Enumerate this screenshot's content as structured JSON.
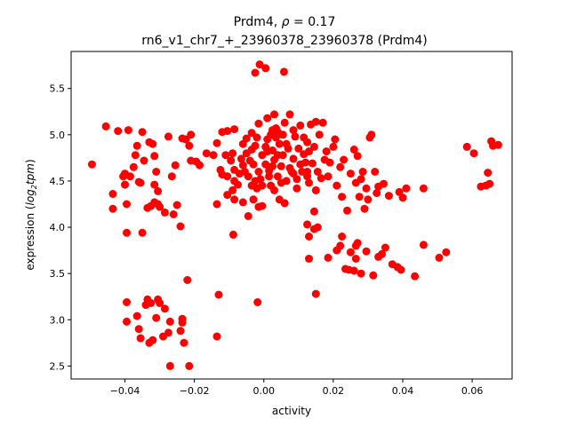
{
  "chart_data": {
    "type": "scatter",
    "title_line1_prefix": "Prdm4, ",
    "title_line1_rho": "ρ",
    "title_line1_suffix": " = 0.17",
    "title_line2": "rn6_v1_chr7_+_23960378_23960378 (Prdm4)",
    "xlabel": "activity",
    "ylabel_prefix": "expression (",
    "ylabel_log": "log",
    "ylabel_sub": "2",
    "ylabel_tpm": "tpm",
    "ylabel_suffix": ")",
    "xlim": [
      -0.0555,
      0.0715
    ],
    "ylim": [
      2.36,
      5.9
    ],
    "xticks": [
      -0.04,
      -0.02,
      0.0,
      0.02,
      0.04,
      0.06
    ],
    "xtick_labels": [
      "−0.04",
      "−0.02",
      "0.00",
      "0.02",
      "0.04",
      "0.06"
    ],
    "yticks": [
      2.5,
      3.0,
      3.5,
      4.0,
      4.5,
      5.0,
      5.5
    ],
    "ytick_labels": [
      "2.5",
      "3.0",
      "3.5",
      "4.0",
      "4.5",
      "5.0",
      "5.5"
    ],
    "grid": false,
    "marker_color": "#ff0000",
    "points": [
      [
        -0.0012,
        5.76
      ],
      [
        0.0005,
        5.72
      ],
      [
        -0.0025,
        5.67
      ],
      [
        0.0058,
        5.68
      ],
      [
        -0.0495,
        4.68
      ],
      [
        -0.0455,
        5.09
      ],
      [
        -0.042,
        5.04
      ],
      [
        -0.039,
        5.05
      ],
      [
        -0.035,
        5.03
      ],
      [
        -0.0435,
        4.36
      ],
      [
        -0.0435,
        4.2
      ],
      [
        -0.04,
        4.58
      ],
      [
        -0.0405,
        4.55
      ],
      [
        -0.04,
        4.46
      ],
      [
        -0.0395,
        4.25
      ],
      [
        -0.0385,
        4.55
      ],
      [
        -0.0375,
        4.65
      ],
      [
        -0.037,
        4.78
      ],
      [
        -0.0365,
        4.88
      ],
      [
        -0.036,
        4.49
      ],
      [
        -0.0355,
        4.48
      ],
      [
        -0.0345,
        4.72
      ],
      [
        -0.0335,
        4.21
      ],
      [
        -0.033,
        4.92
      ],
      [
        -0.032,
        4.9
      ],
      [
        -0.0315,
        4.77
      ],
      [
        -0.031,
        4.6
      ],
      [
        -0.0315,
        4.46
      ],
      [
        -0.0305,
        4.39
      ],
      [
        -0.0315,
        4.27
      ],
      [
        -0.03,
        4.22
      ],
      [
        -0.0325,
        4.23
      ],
      [
        -0.0305,
        4.25
      ],
      [
        -0.0285,
        4.16
      ],
      [
        -0.0275,
        4.98
      ],
      [
        -0.0265,
        4.55
      ],
      [
        -0.0255,
        4.67
      ],
      [
        -0.026,
        4.14
      ],
      [
        -0.025,
        4.24
      ],
      [
        -0.0235,
        4.96
      ],
      [
        -0.0225,
        4.95
      ],
      [
        -0.0215,
        4.88
      ],
      [
        -0.024,
        4.01
      ],
      [
        -0.021,
        5.0
      ],
      [
        -0.021,
        4.72
      ],
      [
        -0.0195,
        4.71
      ],
      [
        -0.0185,
        4.67
      ],
      [
        -0.0165,
        4.8
      ],
      [
        -0.0145,
        4.78
      ],
      [
        -0.0135,
        4.91
      ],
      [
        -0.0125,
        4.62
      ],
      [
        -0.012,
        5.03
      ],
      [
        -0.0105,
        4.55
      ],
      [
        -0.0095,
        4.72
      ],
      [
        -0.009,
        4.8
      ],
      [
        -0.0085,
        4.62
      ],
      [
        -0.0085,
        4.3
      ],
      [
        -0.0075,
        4.46
      ],
      [
        -0.0065,
        4.74
      ],
      [
        -0.006,
        4.9
      ],
      [
        -0.0055,
        4.6
      ],
      [
        -0.005,
        4.8
      ],
      [
        -0.0045,
        4.55
      ],
      [
        -0.004,
        4.72
      ],
      [
        -0.003,
        4.68
      ],
      [
        -0.0025,
        4.88
      ],
      [
        -0.002,
        4.42
      ],
      [
        -0.0015,
        4.6
      ],
      [
        -0.001,
        4.52
      ],
      [
        -0.0005,
        4.78
      ],
      [
        0.0005,
        4.68
      ],
      [
        0.001,
        4.95
      ],
      [
        0.0015,
        4.61
      ],
      [
        0.002,
        5.0
      ],
      [
        0.002,
        4.45
      ],
      [
        0.0025,
        4.83
      ],
      [
        0.003,
        4.73
      ],
      [
        0.0035,
        5.07
      ],
      [
        0.004,
        4.55
      ],
      [
        0.0045,
        4.9
      ],
      [
        0.005,
        4.66
      ],
      [
        0.0055,
        4.78
      ],
      [
        0.006,
        5.13
      ],
      [
        0.0065,
        4.5
      ],
      [
        0.007,
        4.85
      ],
      [
        0.0075,
        5.22
      ],
      [
        0.008,
        4.6
      ],
      [
        0.0085,
        4.74
      ],
      [
        0.009,
        4.98
      ],
      [
        0.0095,
        4.42
      ],
      [
        0.01,
        4.85
      ],
      [
        0.0105,
        4.68
      ],
      [
        0.011,
        4.6
      ],
      [
        0.0115,
        4.79
      ],
      [
        0.012,
        4.7
      ],
      [
        0.0125,
        4.92
      ],
      [
        0.013,
        4.82
      ],
      [
        0.0135,
        5.11
      ],
      [
        0.014,
        4.69
      ],
      [
        0.0145,
        4.87
      ],
      [
        0.015,
        5.14
      ],
      [
        0.0155,
        4.6
      ],
      [
        0.016,
        5.0
      ],
      [
        0.0165,
        4.53
      ],
      [
        0.017,
        5.13
      ],
      [
        0.0175,
        4.73
      ],
      [
        0.018,
        4.82
      ],
      [
        0.0185,
        4.55
      ],
      [
        0.019,
        4.7
      ],
      [
        0.02,
        4.87
      ],
      [
        0.0205,
        4.95
      ],
      [
        0.021,
        4.45
      ],
      [
        0.022,
        4.65
      ],
      [
        0.0225,
        4.33
      ],
      [
        0.023,
        4.73
      ],
      [
        0.024,
        4.18
      ],
      [
        0.025,
        4.58
      ],
      [
        0.026,
        4.84
      ],
      [
        0.0265,
        4.48
      ],
      [
        0.027,
        4.77
      ],
      [
        0.0275,
        4.33
      ],
      [
        0.028,
        4.52
      ],
      [
        0.0285,
        4.6
      ],
      [
        0.029,
        4.2
      ],
      [
        0.0295,
        4.42
      ],
      [
        0.03,
        4.3
      ],
      [
        0.0305,
        4.97
      ],
      [
        0.031,
        5.0
      ],
      [
        0.032,
        4.6
      ],
      [
        0.0325,
        4.37
      ],
      [
        0.033,
        4.44
      ],
      [
        0.0345,
        4.47
      ],
      [
        0.036,
        4.34
      ],
      [
        0.039,
        4.38
      ],
      [
        0.04,
        4.32
      ],
      [
        0.041,
        4.42
      ],
      [
        0.046,
        4.42
      ],
      [
        -0.0015,
        4.22
      ],
      [
        -0.0005,
        4.23
      ],
      [
        -0.002,
        4.97
      ],
      [
        0.0005,
        4.87
      ],
      [
        -0.003,
        4.3
      ],
      [
        -0.0035,
        4.45
      ],
      [
        -0.0005,
        4.45
      ],
      [
        0.0015,
        4.55
      ],
      [
        0.0025,
        4.66
      ],
      [
        -0.0025,
        4.5
      ],
      [
        0.003,
        4.4
      ],
      [
        0.004,
        4.78
      ],
      [
        0.0035,
        4.97
      ],
      [
        0.005,
        4.48
      ],
      [
        0.0065,
        4.9
      ],
      [
        0.0075,
        4.64
      ],
      [
        0.0085,
        4.58
      ],
      [
        0.0095,
        4.52
      ],
      [
        0.001,
        5.18
      ],
      [
        0.0025,
        5.05
      ],
      [
        -0.0015,
        5.12
      ],
      [
        0.003,
        5.22
      ],
      [
        0.004,
        5.03
      ],
      [
        0.0055,
        5.0
      ],
      [
        -0.0035,
        4.84
      ],
      [
        -0.005,
        4.96
      ],
      [
        -0.006,
        4.67
      ],
      [
        -0.007,
        4.58
      ],
      [
        -0.0085,
        4.5
      ],
      [
        -0.009,
        4.4
      ],
      [
        -0.0105,
        4.35
      ],
      [
        -0.011,
        4.78
      ],
      [
        -0.012,
        4.57
      ],
      [
        -0.0135,
        4.25
      ],
      [
        -0.006,
        4.27
      ],
      [
        -0.0045,
        4.12
      ],
      [
        0.0045,
        4.3
      ],
      [
        0.006,
        4.26
      ],
      [
        0.0125,
        4.55
      ],
      [
        0.013,
        4.48
      ],
      [
        0.015,
        4.4
      ],
      [
        0.0145,
        4.17
      ],
      [
        -0.0105,
        5.04
      ],
      [
        -0.0085,
        5.06
      ],
      [
        -0.0035,
        5.02
      ],
      [
        0.0105,
        5.1
      ],
      [
        0.0115,
        4.97
      ],
      [
        0.0125,
        4.6
      ],
      [
        0.0085,
        5.05
      ],
      [
        0.001,
        4.82
      ],
      [
        0.0125,
        4.03
      ],
      [
        0.013,
        3.9
      ],
      [
        0.0145,
        3.98
      ],
      [
        0.0155,
        4.0
      ],
      [
        0.013,
        3.66
      ],
      [
        0.0185,
        3.67
      ],
      [
        0.021,
        3.75
      ],
      [
        0.022,
        3.8
      ],
      [
        0.0225,
        3.9
      ],
      [
        0.0235,
        3.55
      ],
      [
        0.0245,
        3.54
      ],
      [
        0.025,
        3.73
      ],
      [
        0.026,
        3.53
      ],
      [
        0.0265,
        3.8
      ],
      [
        0.027,
        3.83
      ],
      [
        0.028,
        3.5
      ],
      [
        0.0295,
        3.74
      ],
      [
        0.0315,
        3.48
      ],
      [
        0.033,
        3.68
      ],
      [
        0.034,
        3.71
      ],
      [
        0.035,
        3.78
      ],
      [
        0.037,
        3.6
      ],
      [
        0.0385,
        3.57
      ],
      [
        0.0395,
        3.54
      ],
      [
        0.0435,
        3.47
      ],
      [
        0.046,
        3.81
      ],
      [
        0.0505,
        3.67
      ],
      [
        0.0525,
        3.73
      ],
      [
        0.0585,
        4.87
      ],
      [
        0.0605,
        4.8
      ],
      [
        0.0625,
        4.44
      ],
      [
        0.064,
        4.45
      ],
      [
        0.0645,
        4.59
      ],
      [
        0.065,
        4.47
      ],
      [
        0.0655,
        4.93
      ],
      [
        0.066,
        4.88
      ],
      [
        0.0675,
        4.89
      ],
      [
        0.015,
        3.28
      ],
      [
        0.0265,
        3.66
      ],
      [
        -0.0395,
        3.94
      ],
      [
        -0.035,
        3.94
      ],
      [
        -0.0395,
        3.19
      ],
      [
        -0.0395,
        2.98
      ],
      [
        -0.0365,
        3.04
      ],
      [
        -0.036,
        2.9
      ],
      [
        -0.0355,
        2.8
      ],
      [
        -0.034,
        3.16
      ],
      [
        -0.0335,
        3.22
      ],
      [
        -0.0325,
        3.18
      ],
      [
        -0.033,
        2.75
      ],
      [
        -0.032,
        2.78
      ],
      [
        -0.031,
        3.02
      ],
      [
        -0.0305,
        3.22
      ],
      [
        -0.03,
        3.18
      ],
      [
        -0.029,
        2.82
      ],
      [
        -0.0285,
        3.12
      ],
      [
        -0.027,
        2.98
      ],
      [
        -0.0275,
        2.86
      ],
      [
        -0.027,
        2.5
      ],
      [
        -0.024,
        2.88
      ],
      [
        -0.0235,
        3.01
      ],
      [
        -0.0235,
        2.97
      ],
      [
        -0.023,
        2.75
      ],
      [
        -0.022,
        3.43
      ],
      [
        -0.0215,
        2.5
      ],
      [
        -0.013,
        3.27
      ],
      [
        -0.0135,
        2.82
      ],
      [
        -0.0018,
        3.19
      ],
      [
        -0.0088,
        3.92
      ]
    ]
  }
}
